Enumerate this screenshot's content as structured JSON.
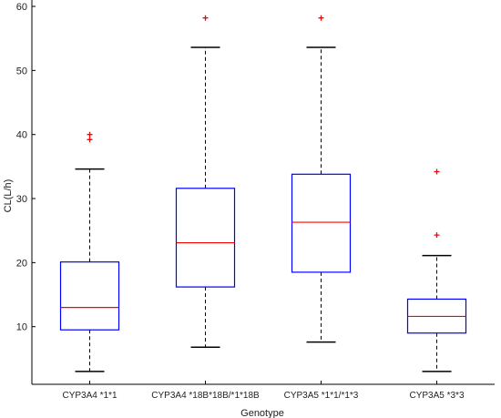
{
  "chart_data": {
    "type": "boxplot",
    "xlabel": "Genotype",
    "ylabel": "CL(L/h)",
    "ylim": [
      1,
      61
    ],
    "yticks": [
      10,
      20,
      30,
      40,
      50,
      60
    ],
    "grid": false,
    "categories": [
      "CYP3A4 *1*1",
      "CYP3A4 *18B*18B/*1*18B",
      "CYP3A5 *1*1/*1*3",
      "CYP3A5 *3*3"
    ],
    "boxes": [
      {
        "category": "CYP3A4 *1*1",
        "whisker_low": 3.0,
        "q1": 9.5,
        "median": 13.0,
        "q3": 20.1,
        "whisker_high": 34.6,
        "outliers": [
          39.2,
          40.0
        ]
      },
      {
        "category": "CYP3A4 *18B*18B/*1*18B",
        "whisker_low": 6.8,
        "q1": 16.2,
        "median": 23.1,
        "q3": 31.6,
        "whisker_high": 53.6,
        "outliers": [
          58.2
        ]
      },
      {
        "category": "CYP3A5 *1*1/*1*3",
        "whisker_low": 7.6,
        "q1": 18.5,
        "median": 26.3,
        "q3": 33.8,
        "whisker_high": 53.6,
        "outliers": [
          58.2
        ]
      },
      {
        "category": "CYP3A5 *3*3",
        "whisker_low": 3.0,
        "q1": 9.0,
        "median": 11.6,
        "q3": 14.3,
        "whisker_high": 21.1,
        "outliers": [
          24.3,
          34.2
        ]
      }
    ],
    "colors": {
      "box": "#0000ff",
      "median": "#ff0000",
      "outlier": "#ff0000",
      "whisker": "#000000",
      "axis": "#000000"
    }
  }
}
